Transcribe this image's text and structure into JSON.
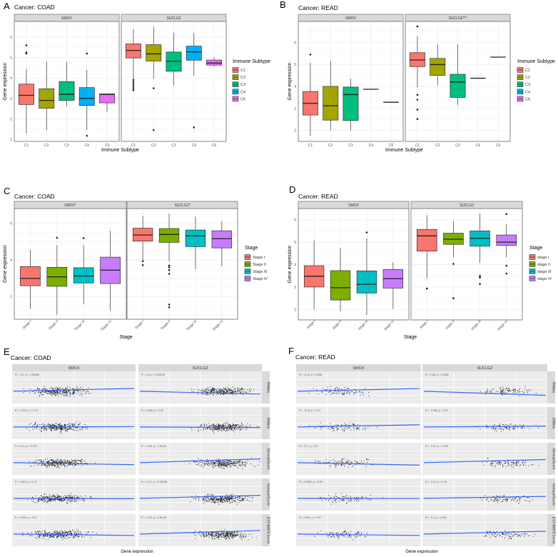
{
  "colors": {
    "immune": [
      "#F8766D",
      "#A3A500",
      "#00BF7D",
      "#00B0F6",
      "#E76BF3"
    ],
    "stage": [
      "#F8766D",
      "#7CAE00",
      "#00BFC4",
      "#C77CFF"
    ],
    "fit_line": "#3366FF"
  },
  "chart_data": [
    {
      "id": "A",
      "type": "box",
      "letter": "A",
      "title": "Cancer: COAD",
      "xlabel": "Immune Subtype",
      "ylabel": "Gene expression",
      "yticks": [
        "1",
        "2",
        "3",
        "4",
        "5",
        "6"
      ],
      "categories": [
        "C1",
        "C2",
        "C3",
        "C4",
        "C6"
      ],
      "legend": {
        "title": "Immune Subtype",
        "items": [
          "C1",
          "C2",
          "C3",
          "C4",
          "C6"
        ],
        "position": "right"
      },
      "facets": [
        {
          "label": "SMOX",
          "boxes": [
            {
              "min": 1.3,
              "q1": 2.7,
              "median": 3.15,
              "q3": 3.7,
              "max": 4.45,
              "outliers": [
                5.2,
                5.25,
                5.6
              ]
            },
            {
              "min": 1.45,
              "q1": 2.52,
              "median": 2.9,
              "q3": 3.47,
              "max": 4.8,
              "outliers": []
            },
            {
              "min": 2.6,
              "q1": 2.9,
              "median": 3.2,
              "q3": 3.82,
              "max": 4.8,
              "outliers": []
            },
            {
              "min": 1.45,
              "q1": 2.65,
              "median": 3.0,
              "q3": 3.53,
              "max": 4.4,
              "outliers": [
                5.2,
                1.17
              ]
            },
            {
              "min": 2.35,
              "q1": 2.78,
              "median": 3.2,
              "q3": 3.22,
              "max": 3.22,
              "outliers": []
            }
          ]
        },
        {
          "label": "SUCLG2",
          "boxes": [
            {
              "min": 3.95,
              "q1": 4.98,
              "median": 5.35,
              "q3": 5.67,
              "max": 6.4,
              "outliers": [
                3.4,
                3.5,
                3.6,
                3.7,
                3.8,
                3.9
              ]
            },
            {
              "min": 3.95,
              "q1": 4.83,
              "median": 5.18,
              "q3": 5.63,
              "max": 6.5,
              "outliers": [
                3.5,
                1.45
              ]
            },
            {
              "min": 3.62,
              "q1": 4.33,
              "median": 4.82,
              "q3": 5.27,
              "max": 6.22,
              "outliers": []
            },
            {
              "min": 4.1,
              "q1": 4.87,
              "median": 5.28,
              "q3": 5.56,
              "max": 6.2,
              "outliers": [
                1.58
              ]
            },
            {
              "min": 4.55,
              "q1": 4.63,
              "median": 4.73,
              "q3": 4.88,
              "max": 5.0,
              "outliers": []
            }
          ]
        }
      ]
    },
    {
      "id": "B",
      "type": "box",
      "letter": "B",
      "title": "Cancer: READ",
      "xlabel": "Immune Subtype",
      "ylabel": "Gene expression",
      "yticks": [
        "2",
        "3",
        "4",
        "5",
        "6"
      ],
      "categories": [
        "C1",
        "C2",
        "C3",
        "C4",
        "C6"
      ],
      "legend": {
        "title": "Immune Subtype",
        "items": [
          "C1",
          "C2",
          "C3",
          "C4",
          "C6"
        ],
        "position": "right"
      },
      "facets": [
        {
          "label": "SMOX",
          "boxes": [
            {
              "min": 1.75,
              "q1": 2.7,
              "median": 3.23,
              "q3": 3.77,
              "max": 5.07,
              "outliers": [
                5.45
              ]
            },
            {
              "min": 2.0,
              "q1": 2.47,
              "median": 3.12,
              "q3": 4.0,
              "max": 5.17,
              "outliers": []
            },
            {
              "min": 2.0,
              "q1": 2.45,
              "median": 3.63,
              "q3": 3.97,
              "max": 4.35,
              "outliers": []
            },
            {
              "min": 3.87,
              "q1": 3.87,
              "median": 3.87,
              "q3": 3.87,
              "max": 3.87,
              "outliers": []
            },
            {
              "min": 3.28,
              "q1": 3.28,
              "median": 3.28,
              "q3": 3.28,
              "max": 3.28,
              "outliers": []
            }
          ]
        },
        {
          "label": "SUCLG2***",
          "boxes": [
            {
              "min": 3.95,
              "q1": 4.9,
              "median": 5.2,
              "q3": 5.53,
              "max": 6.28,
              "outliers": [
                6.72,
                3.62,
                3.4,
                2.95,
                2.52
              ]
            },
            {
              "min": 4.05,
              "q1": 4.5,
              "median": 4.99,
              "q3": 5.27,
              "max": 5.9,
              "outliers": []
            },
            {
              "min": 3.15,
              "q1": 3.5,
              "median": 4.2,
              "q3": 4.55,
              "max": 5.92,
              "outliers": []
            },
            {
              "min": 4.37,
              "q1": 4.37,
              "median": 4.37,
              "q3": 4.37,
              "max": 4.37,
              "outliers": []
            },
            {
              "min": 5.33,
              "q1": 5.33,
              "median": 5.33,
              "q3": 5.33,
              "max": 5.33,
              "outliers": []
            }
          ]
        }
      ]
    },
    {
      "id": "C",
      "type": "box",
      "letter": "C",
      "title": "Cancer: COAD",
      "xlabel": "Stage",
      "ylabel": "Gene expression",
      "yticks": [
        "2",
        "4",
        "6"
      ],
      "categories": [
        "Stage I",
        "Stage II",
        "Stage III",
        "Stage IV"
      ],
      "legend": {
        "title": "Stage",
        "items": [
          "Stage I",
          "Stage II",
          "Stage III",
          "Stage IV"
        ],
        "position": "right"
      },
      "facets": [
        {
          "label": "SMOX*",
          "boxes": [
            {
              "min": 1.35,
              "q1": 2.6,
              "median": 3.0,
              "q3": 3.64,
              "max": 4.55,
              "outliers": []
            },
            {
              "min": 1.03,
              "q1": 2.57,
              "median": 3.08,
              "q3": 3.6,
              "max": 4.8,
              "outliers": [
                5.2
              ]
            },
            {
              "min": 1.6,
              "q1": 2.75,
              "median": 3.13,
              "q3": 3.58,
              "max": 4.8,
              "outliers": [
                5.18
              ]
            },
            {
              "min": 1.25,
              "q1": 2.72,
              "median": 3.45,
              "q3": 4.15,
              "max": 5.58,
              "outliers": []
            }
          ]
        },
        {
          "label": "SUCLG2*",
          "boxes": [
            {
              "min": 3.95,
              "q1": 5.02,
              "median": 5.35,
              "q3": 5.72,
              "max": 6.4,
              "outliers": [
                3.93,
                3.72
              ]
            },
            {
              "min": 3.93,
              "q1": 4.95,
              "median": 5.38,
              "q3": 5.7,
              "max": 6.5,
              "outliers": [
                3.7,
                3.6,
                3.45,
                3.25,
                1.58,
                1.43
              ]
            },
            {
              "min": 3.5,
              "q1": 4.72,
              "median": 5.3,
              "q3": 5.62,
              "max": 6.35,
              "outliers": []
            },
            {
              "min": 3.65,
              "q1": 4.65,
              "median": 5.15,
              "q3": 5.58,
              "max": 6.1,
              "outliers": []
            }
          ]
        }
      ]
    },
    {
      "id": "D",
      "type": "box",
      "letter": "D",
      "title": "Cancer: READ",
      "xlabel": "Stage",
      "ylabel": "Gene expression",
      "yticks": [
        "2",
        "3",
        "4",
        "5",
        "6"
      ],
      "categories": [
        "stage I",
        "stage II",
        "stage III",
        "stage IV"
      ],
      "legend": {
        "title": "Stage",
        "items": [
          "stage I",
          "stage II",
          "stage III",
          "stage IV"
        ],
        "position": "right"
      },
      "facets": [
        {
          "label": "SMOX",
          "boxes": [
            {
              "min": 2.0,
              "q1": 3.0,
              "median": 3.48,
              "q3": 3.95,
              "max": 5.07,
              "outliers": []
            },
            {
              "min": 1.92,
              "q1": 2.42,
              "median": 2.97,
              "q3": 3.73,
              "max": 4.75,
              "outliers": []
            },
            {
              "min": 1.75,
              "q1": 2.73,
              "median": 3.12,
              "q3": 3.72,
              "max": 5.18,
              "outliers": [
                5.43
              ]
            },
            {
              "min": 2.02,
              "q1": 2.95,
              "median": 3.37,
              "q3": 3.78,
              "max": 4.1,
              "outliers": []
            }
          ]
        },
        {
          "label": "SUCLG2",
          "boxes": [
            {
              "min": 3.4,
              "q1": 4.6,
              "median": 5.28,
              "q3": 5.57,
              "max": 6.2,
              "outliers": [
                2.93
              ]
            },
            {
              "min": 4.33,
              "q1": 4.9,
              "median": 5.13,
              "q3": 5.4,
              "max": 5.93,
              "outliers": [
                4.03,
                2.5
              ]
            },
            {
              "min": 4.07,
              "q1": 4.82,
              "median": 5.17,
              "q3": 5.5,
              "max": 6.27,
              "outliers": [
                3.5,
                3.42,
                3.13
              ]
            },
            {
              "min": 4.33,
              "q1": 4.85,
              "median": 5.0,
              "q3": 5.32,
              "max": 5.8,
              "outliers": [
                6.25,
                3.95,
                3.6
              ]
            }
          ]
        }
      ]
    },
    {
      "id": "E",
      "type": "scatter",
      "letter": "E",
      "title": "Cancer: COAD",
      "xlabel": "Gene expression",
      "n_points": 300,
      "columns": [
        "SMOX",
        "SUCLG2"
      ],
      "rows": [
        "RNAss",
        "DNAss",
        "StromalScore",
        "ImmuneScore",
        "ESTIMATEScore"
      ],
      "stats": [
        [
          {
            "R": -0.2,
            "label": "R = -0.2, p = 0.00066"
          },
          {
            "R": 0.2,
            "label": "R = 0.2, p = 0.00048"
          }
        ],
        [
          {
            "R": -0.022,
            "label": "R = -0.022, p = 0.73"
          },
          {
            "R": 0.036,
            "label": "R = 0.036, p = 0.52"
          }
        ],
        [
          {
            "R": 0.14,
            "label": "R = 0.14, p = 0.015"
          },
          {
            "R": -0.26,
            "label": "R = -0.26, p = 1.3e-05"
          }
        ],
        [
          {
            "R": 0.019,
            "label": "R = 0.019, p = 0.74"
          },
          {
            "R": -0.21,
            "label": "R = -0.21, p = 0.00048"
          }
        ],
        [
          {
            "R": 0.094,
            "label": "R = 0.094, p = 0.11"
          },
          {
            "R": -0.25,
            "label": "R = -0.25, p = 2.8e-05"
          }
        ]
      ]
    },
    {
      "id": "F",
      "type": "scatter",
      "letter": "F",
      "title": "Cancer: READ",
      "xlabel": "Gene expression",
      "n_points": 95,
      "columns": [
        "SMOX",
        "SUCLG2"
      ],
      "rows": [
        "RNAss",
        "DNAss",
        "StromalScore",
        "ImmuneScore",
        "ESTIMATEScore"
      ],
      "stats": [
        [
          {
            "R": -0.19,
            "label": "R = -0.19, p = 0.068"
          },
          {
            "R": 0.28,
            "label": "R = 0.28, p = 0.0089"
          }
        ],
        [
          {
            "R": -0.15,
            "label": "R = -0.15, p = 0.14"
          },
          {
            "R": -0.058,
            "label": "R = -0.058, p = 0.57"
          }
        ],
        [
          {
            "R": 0.17,
            "label": "R = 0.17, p = 0.1"
          },
          {
            "R": -0.22,
            "label": "R = -0.22, p = 0.032"
          }
        ],
        [
          {
            "R": 0.0066,
            "label": "R = 0.0066, p = 0.95"
          },
          {
            "R": -0.14,
            "label": "R = -0.14, p = 0.19"
          }
        ],
        [
          {
            "R": 0.094,
            "label": "R = 0.094, p = 0.37"
          },
          {
            "R": -0.2,
            "label": "R = -0.2, p = 0.051"
          }
        ]
      ]
    }
  ]
}
